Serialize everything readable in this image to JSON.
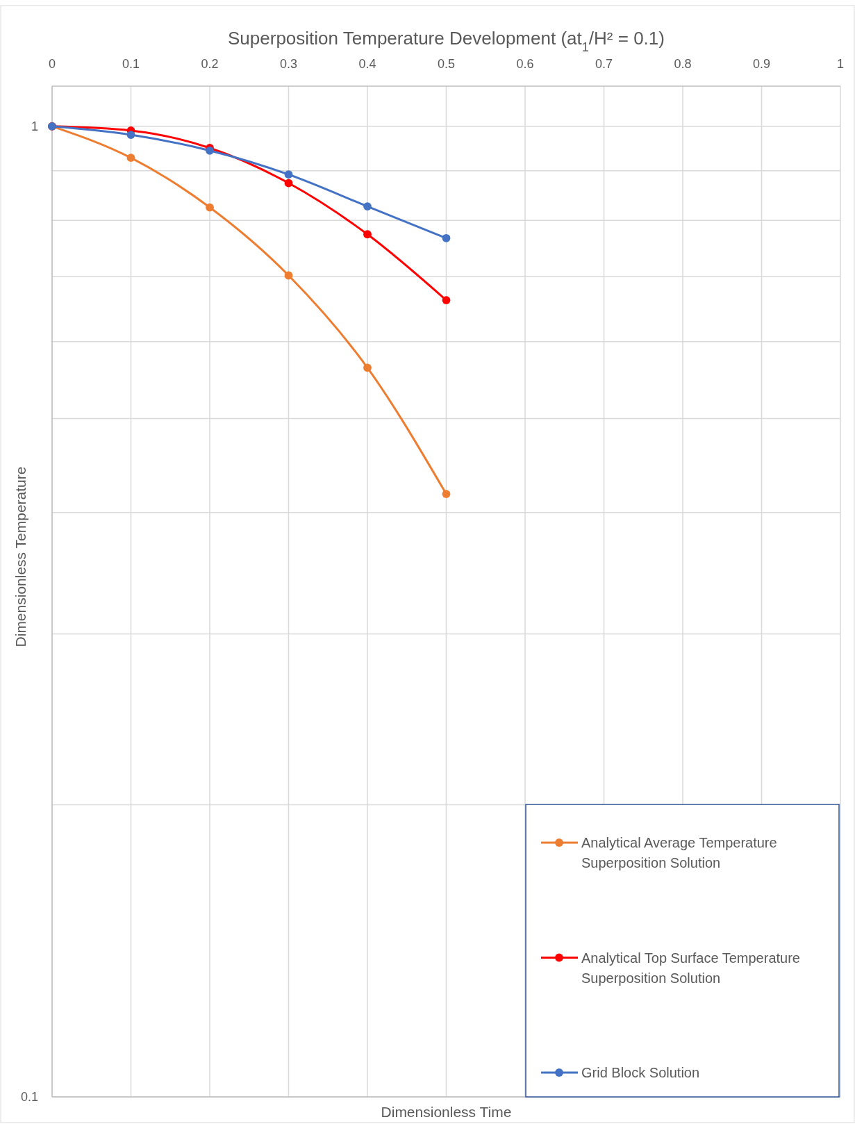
{
  "chart_data": {
    "type": "line",
    "title": "Superposition Temperature Development (at$_{1}$/H² = 0.1)",
    "xlabel": "Dimensionless Time",
    "ylabel": "Dimensionless Temperature",
    "x": [
      0,
      0.1,
      0.2,
      0.3,
      0.4,
      0.5
    ],
    "series": [
      {
        "name": "Analytical Average Temperature Superposition Solution",
        "color": "#ed7d31",
        "values": [
          1,
          0.928,
          0.825,
          0.702,
          0.564,
          0.418
        ]
      },
      {
        "name": "Analytical Top Surface Temperature Superposition Solution",
        "color": "#ff0000",
        "values": [
          1,
          0.99,
          0.95,
          0.874,
          0.774,
          0.662
        ]
      },
      {
        "name": "Grid Block Solution",
        "color": "#4472c4",
        "values": [
          1,
          0.98,
          0.944,
          0.892,
          0.827,
          0.767
        ]
      }
    ],
    "xlim": [
      0,
      1
    ],
    "xticks": [
      0,
      0.1,
      0.2,
      0.3,
      0.4,
      0.5,
      0.6,
      0.7,
      0.8,
      0.9,
      1
    ],
    "ylim": [
      0.1,
      1.1
    ],
    "yticks": [
      0.1,
      {
        "value": 0.2,
        "label": null
      },
      {
        "value": 0.3,
        "label": null
      },
      {
        "value": 0.4,
        "label": null
      },
      {
        "value": 0.5,
        "label": null
      },
      {
        "value": 0.6,
        "label": null
      },
      {
        "value": 0.7,
        "label": null
      },
      {
        "value": 0.8,
        "label": null
      },
      {
        "value": 0.9,
        "label": null
      },
      1
    ],
    "log": "y",
    "grid": true,
    "legend": "bottom right",
    "marker": "circle",
    "line_style": "solid"
  }
}
